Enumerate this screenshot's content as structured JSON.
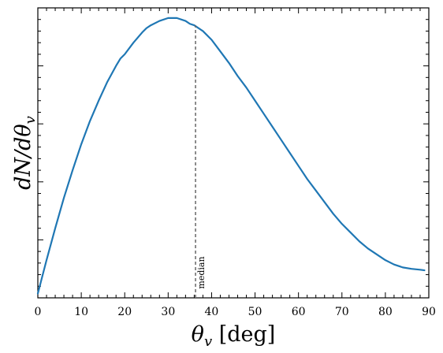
{
  "chart_data": {
    "type": "line",
    "title": "",
    "xlabel_prefix": "θ",
    "xlabel_sub": "v",
    "xlabel_suffix": " [deg]",
    "ylabel_prefix": "dN/dθ",
    "ylabel_sub": "v",
    "xlim": [
      0,
      90
    ],
    "x_ticks": [
      0,
      10,
      20,
      30,
      40,
      50,
      60,
      70,
      80,
      90
    ],
    "x_tick_labels": [
      "0",
      "10",
      "20",
      "30",
      "40",
      "50",
      "60",
      "70",
      "80",
      "90"
    ],
    "ylim": [
      0,
      1
    ],
    "y_tick_labels_shown": false,
    "grid": false,
    "series": [
      {
        "color": "#1f77b4",
        "x": [
          0,
          2,
          4,
          6,
          8,
          10,
          12,
          14,
          16,
          18,
          19,
          20,
          22,
          24,
          25,
          26,
          28,
          30,
          32,
          34,
          35,
          36,
          38,
          40,
          42,
          44,
          46,
          48,
          50,
          52,
          54,
          56,
          58,
          60,
          62,
          64,
          66,
          68,
          70,
          72,
          74,
          76,
          78,
          80,
          82,
          84,
          86,
          88,
          89
        ],
        "y": [
          0.015,
          0.13,
          0.24,
          0.345,
          0.44,
          0.53,
          0.61,
          0.68,
          0.745,
          0.8,
          0.825,
          0.84,
          0.88,
          0.915,
          0.93,
          0.94,
          0.955,
          0.965,
          0.965,
          0.955,
          0.945,
          0.94,
          0.92,
          0.89,
          0.85,
          0.81,
          0.765,
          0.725,
          0.68,
          0.635,
          0.59,
          0.545,
          0.5,
          0.455,
          0.41,
          0.37,
          0.33,
          0.29,
          0.255,
          0.225,
          0.195,
          0.17,
          0.15,
          0.13,
          0.115,
          0.105,
          0.1,
          0.097,
          0.095
        ]
      }
    ],
    "annotations": [
      {
        "type": "vline",
        "x": 36.3,
        "y_top": 0.94,
        "label": "median",
        "color": "#666666",
        "style": "dashed"
      }
    ]
  }
}
